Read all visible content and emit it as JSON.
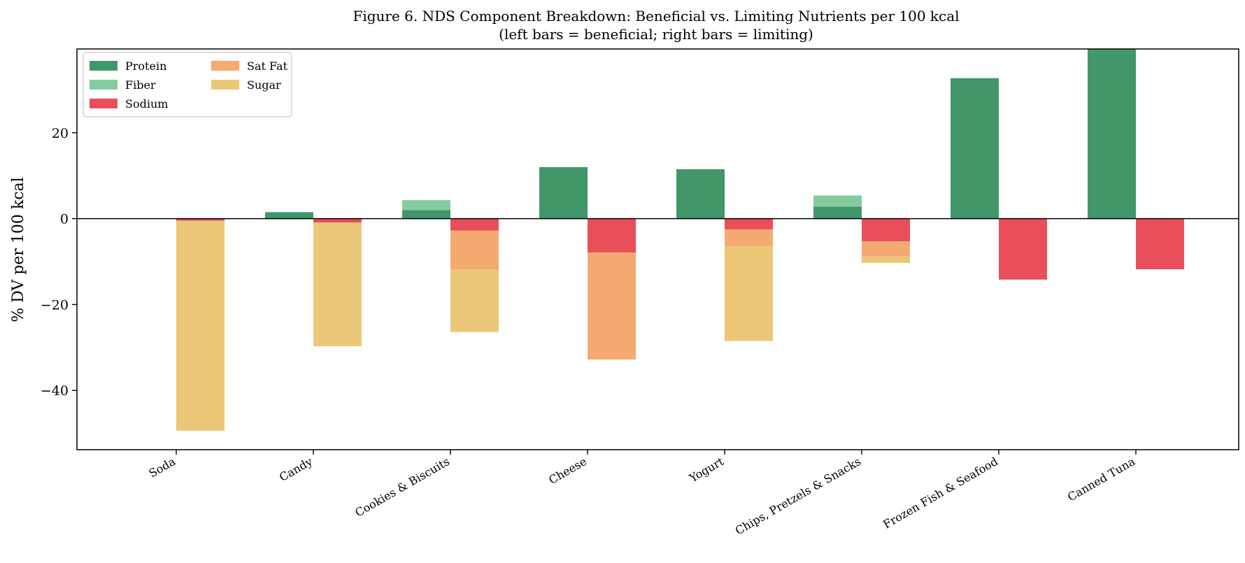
{
  "chart_data": {
    "type": "bar",
    "title": "Figure 6. NDS Component Breakdown: Beneficial vs. Limiting Nutrients per 100 kcal",
    "subtitle": "(left bars = beneficial; right bars = limiting)",
    "xlabel": "",
    "ylabel": "% DV per 100 kcal",
    "ylim": [
      -53.8,
      39.5
    ],
    "yticks": [
      -40,
      -20,
      0,
      20
    ],
    "ytick_labels": [
      "−40",
      "−20",
      "0",
      "20"
    ],
    "grid": false,
    "legend_position": "top-left",
    "categories": [
      "Soda",
      "Candy",
      "Cookies & Biscuits",
      "Cheese",
      "Yogurt",
      "Chips, Pretzels & Snacks",
      "Frozen Fish & Seafood",
      "Canned Tuna"
    ],
    "series": [
      {
        "name": "Protein",
        "group": "beneficial",
        "color": "#41976a",
        "values": [
          0,
          1.5,
          2.0,
          12.0,
          11.5,
          2.8,
          32.7,
          39.5
        ]
      },
      {
        "name": "Fiber",
        "group": "beneficial",
        "color": "#84cc9e",
        "values": [
          0,
          0,
          2.3,
          0,
          0,
          2.6,
          0,
          0
        ]
      },
      {
        "name": "Sodium",
        "group": "limiting",
        "color": "#e94f5a",
        "values": [
          -0.5,
          -0.9,
          -2.8,
          -7.9,
          -2.5,
          -5.3,
          -14.2,
          -11.8
        ]
      },
      {
        "name": "Sat Fat",
        "group": "limiting",
        "color": "#f4aa70",
        "values": [
          0,
          0,
          -9.1,
          -24.9,
          -3.9,
          -3.5,
          0,
          0
        ]
      },
      {
        "name": "Sugar",
        "group": "limiting",
        "color": "#ebc878",
        "values": [
          -48.9,
          -28.8,
          -14.5,
          0,
          -22.1,
          -1.5,
          0,
          0
        ]
      }
    ]
  },
  "legend": {
    "items": [
      {
        "label": "Protein",
        "color": "#41976a"
      },
      {
        "label": "Fiber",
        "color": "#84cc9e"
      },
      {
        "label": "Sodium",
        "color": "#e94f5a"
      },
      {
        "label": "Sat Fat",
        "color": "#f4aa70"
      },
      {
        "label": "Sugar",
        "color": "#ebc878"
      }
    ]
  }
}
